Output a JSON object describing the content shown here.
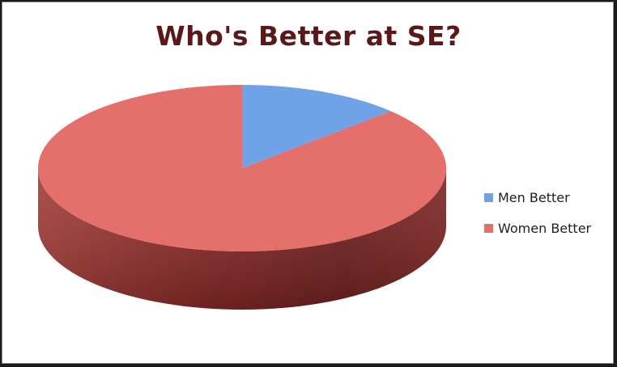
{
  "chart_data": {
    "type": "pie",
    "title": "Who's Better at SE?",
    "three_d": true,
    "legend_placement": "right",
    "slices": [
      {
        "label": "Men Better",
        "value": 13,
        "color": "#6fa2e6"
      },
      {
        "label": "Women Better",
        "value": 87,
        "color": "#e46f6b"
      }
    ]
  }
}
